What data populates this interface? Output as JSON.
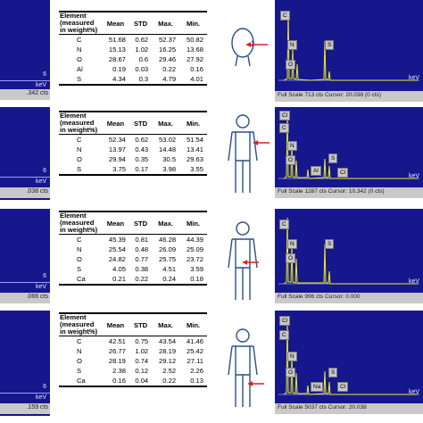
{
  "rows": [
    {
      "left_count": ".342 cts",
      "left_six": "6",
      "left_kev": "keV",
      "headers": [
        "Element (measured in weight%)",
        "Mean",
        "STD",
        "Max.",
        "Min."
      ],
      "table": [
        [
          "C",
          "51.68",
          "0.62",
          "52.37",
          "50.82"
        ],
        [
          "N",
          "15.13",
          "1.02",
          "16.25",
          "13.68"
        ],
        [
          "O",
          "28.67",
          "0.6",
          "29.46",
          "27.92"
        ],
        [
          "Al",
          "0.19",
          "0.03",
          "0.22",
          "0.16"
        ],
        [
          "S",
          "4.34",
          "0.3",
          "4.79",
          "4.01"
        ]
      ],
      "spectrum": {
        "kev": "keV",
        "footer": "Full Scale 713 cts Cursor: 20.038 (0 cts)",
        "labels": [
          "C",
          "N",
          "O",
          "S"
        ]
      }
    },
    {
      "left_count": ".038 cts",
      "left_six": "6",
      "left_kev": "keV",
      "headers": [
        "Element (measured in weight%)",
        "Mean",
        "STD",
        "Max.",
        "Min."
      ],
      "table": [
        [
          "C",
          "52.34",
          "0.62",
          "53.02",
          "51.54"
        ],
        [
          "N",
          "13.97",
          "0.43",
          "14.48",
          "13.41"
        ],
        [
          "O",
          "29.94",
          "0.35",
          "30.5",
          "29.63"
        ],
        [
          "S",
          "3.75",
          "0.17",
          "3.98",
          "3.55"
        ]
      ],
      "spectrum": {
        "kev": "keV",
        "footer": "Full Scale 1287 cts Cursor: 10.342 (0 cts)",
        "labels": [
          "Cl",
          "C",
          "N",
          "O",
          "Al",
          "S",
          "Cl"
        ]
      }
    },
    {
      "left_count": ".066 cts",
      "left_six": "6",
      "left_kev": "keV",
      "headers": [
        "Element (measured in weight%)",
        "Mean",
        "STD",
        "Max.",
        "Min."
      ],
      "table": [
        [
          "C",
          "45.39",
          "0.81",
          "46.28",
          "44.39"
        ],
        [
          "N",
          "25.54",
          "0.48",
          "26.09",
          "25.09"
        ],
        [
          "O",
          "24.82",
          "0.77",
          "25.75",
          "23.72"
        ],
        [
          "S",
          "4.05",
          "0.38",
          "4.51",
          "3.59"
        ],
        [
          "Ca",
          "0.21",
          "0.22",
          "0.24",
          "0.18"
        ]
      ],
      "spectrum": {
        "kev": "keV",
        "footer": "Full Scale 996 cts Cursor: 0.000",
        "labels": [
          "C",
          "N",
          "O",
          "S"
        ]
      }
    },
    {
      "left_count": ".159 cts",
      "left_six": "6",
      "left_kev": "keV",
      "headers": [
        "Element (measured in weight%)",
        "Mean",
        "STD",
        "Max.",
        "Min."
      ],
      "table": [
        [
          "C",
          "42.51",
          "0.75",
          "43.54",
          "41.46"
        ],
        [
          "N",
          "26.77",
          "1.02",
          "28.19",
          "25.42"
        ],
        [
          "O",
          "28.19",
          "0.74",
          "29.12",
          "27.11"
        ],
        [
          "S",
          "2.38",
          "0.12",
          "2.52",
          "2.26"
        ],
        [
          "Ca",
          "0.16",
          "0.04",
          "0.22",
          "0.13"
        ]
      ],
      "spectrum": {
        "kev": "keV",
        "footer": "Full Scale 5037 cts Cursor: 20.038",
        "labels": [
          "Cl",
          "C",
          "N",
          "O",
          "Na",
          "S",
          "Cl"
        ]
      }
    }
  ],
  "chart_data": [
    {
      "type": "table",
      "columns": [
        "Element (measured in weight%)",
        "Mean",
        "STD",
        "Max.",
        "Min."
      ],
      "rows": [
        [
          "C",
          51.68,
          0.62,
          52.37,
          50.82
        ],
        [
          "N",
          15.13,
          1.02,
          16.25,
          13.68
        ],
        [
          "O",
          28.67,
          0.6,
          29.46,
          27.92
        ],
        [
          "Al",
          0.19,
          0.03,
          0.22,
          0.16
        ],
        [
          "S",
          4.34,
          0.3,
          4.79,
          4.01
        ]
      ]
    },
    {
      "type": "table",
      "columns": [
        "Element (measured in weight%)",
        "Mean",
        "STD",
        "Max.",
        "Min."
      ],
      "rows": [
        [
          "C",
          52.34,
          0.62,
          53.02,
          51.54
        ],
        [
          "N",
          13.97,
          0.43,
          14.48,
          13.41
        ],
        [
          "O",
          29.94,
          0.35,
          30.5,
          29.63
        ],
        [
          "S",
          3.75,
          0.17,
          3.98,
          3.55
        ]
      ]
    },
    {
      "type": "table",
      "columns": [
        "Element (measured in weight%)",
        "Mean",
        "STD",
        "Max.",
        "Min."
      ],
      "rows": [
        [
          "C",
          45.39,
          0.81,
          46.28,
          44.39
        ],
        [
          "N",
          25.54,
          0.48,
          26.09,
          25.09
        ],
        [
          "O",
          24.82,
          0.77,
          25.75,
          23.72
        ],
        [
          "S",
          4.05,
          0.38,
          4.51,
          3.59
        ],
        [
          "Ca",
          0.21,
          0.22,
          0.24,
          0.18
        ]
      ]
    },
    {
      "type": "table",
      "columns": [
        "Element (measured in weight%)",
        "Mean",
        "STD",
        "Max.",
        "Min."
      ],
      "rows": [
        [
          "C",
          42.51,
          0.75,
          43.54,
          41.46
        ],
        [
          "N",
          26.77,
          1.02,
          28.19,
          25.42
        ],
        [
          "O",
          28.19,
          0.74,
          29.12,
          27.11
        ],
        [
          "S",
          2.38,
          0.12,
          2.52,
          2.26
        ],
        [
          "Ca",
          0.16,
          0.04,
          0.22,
          0.13
        ]
      ]
    }
  ]
}
